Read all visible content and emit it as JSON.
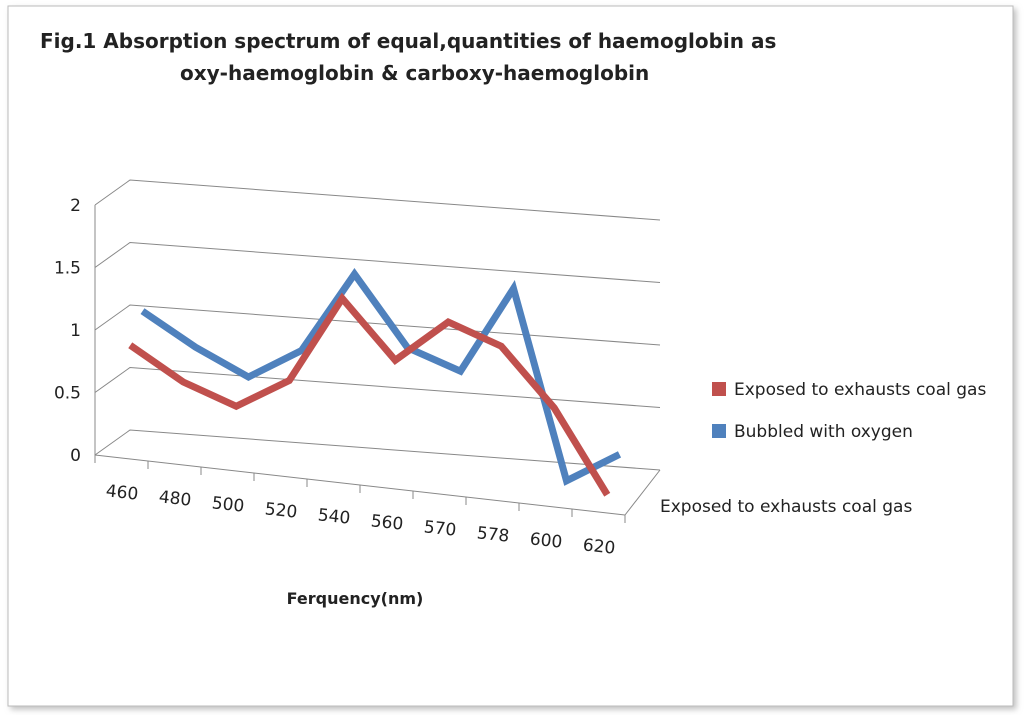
{
  "chart_data": {
    "type": "line3d",
    "title": [
      "Fig.1 Absorption spectrum of equal,quantities of haemoglobin as",
      "oxy-haemoglobin & carboxy-haemoglobin"
    ],
    "x_label": "Ferquency(nm)",
    "depth_label": "Exposed to exhausts coal gas",
    "categories": [
      "460",
      "480",
      "500",
      "520",
      "540",
      "560",
      "570",
      "578",
      "600",
      "620"
    ],
    "series": [
      {
        "name": "Exposed to exhausts coal gas",
        "color": "#c0504d",
        "values": [
          0.85,
          0.6,
          0.45,
          0.7,
          1.4,
          0.95,
          1.3,
          1.15,
          0.7,
          0.05
        ]
      },
      {
        "name": "Bubbled with oxygen",
        "color": "#4f81bd",
        "values": [
          1.05,
          0.8,
          0.6,
          0.85,
          1.5,
          0.95,
          0.8,
          1.5,
          0.0,
          0.25
        ]
      }
    ],
    "ylim": [
      0,
      2
    ],
    "yticks": [
      0,
      0.5,
      1,
      1.5,
      2
    ],
    "grid": true,
    "legend": "right"
  }
}
